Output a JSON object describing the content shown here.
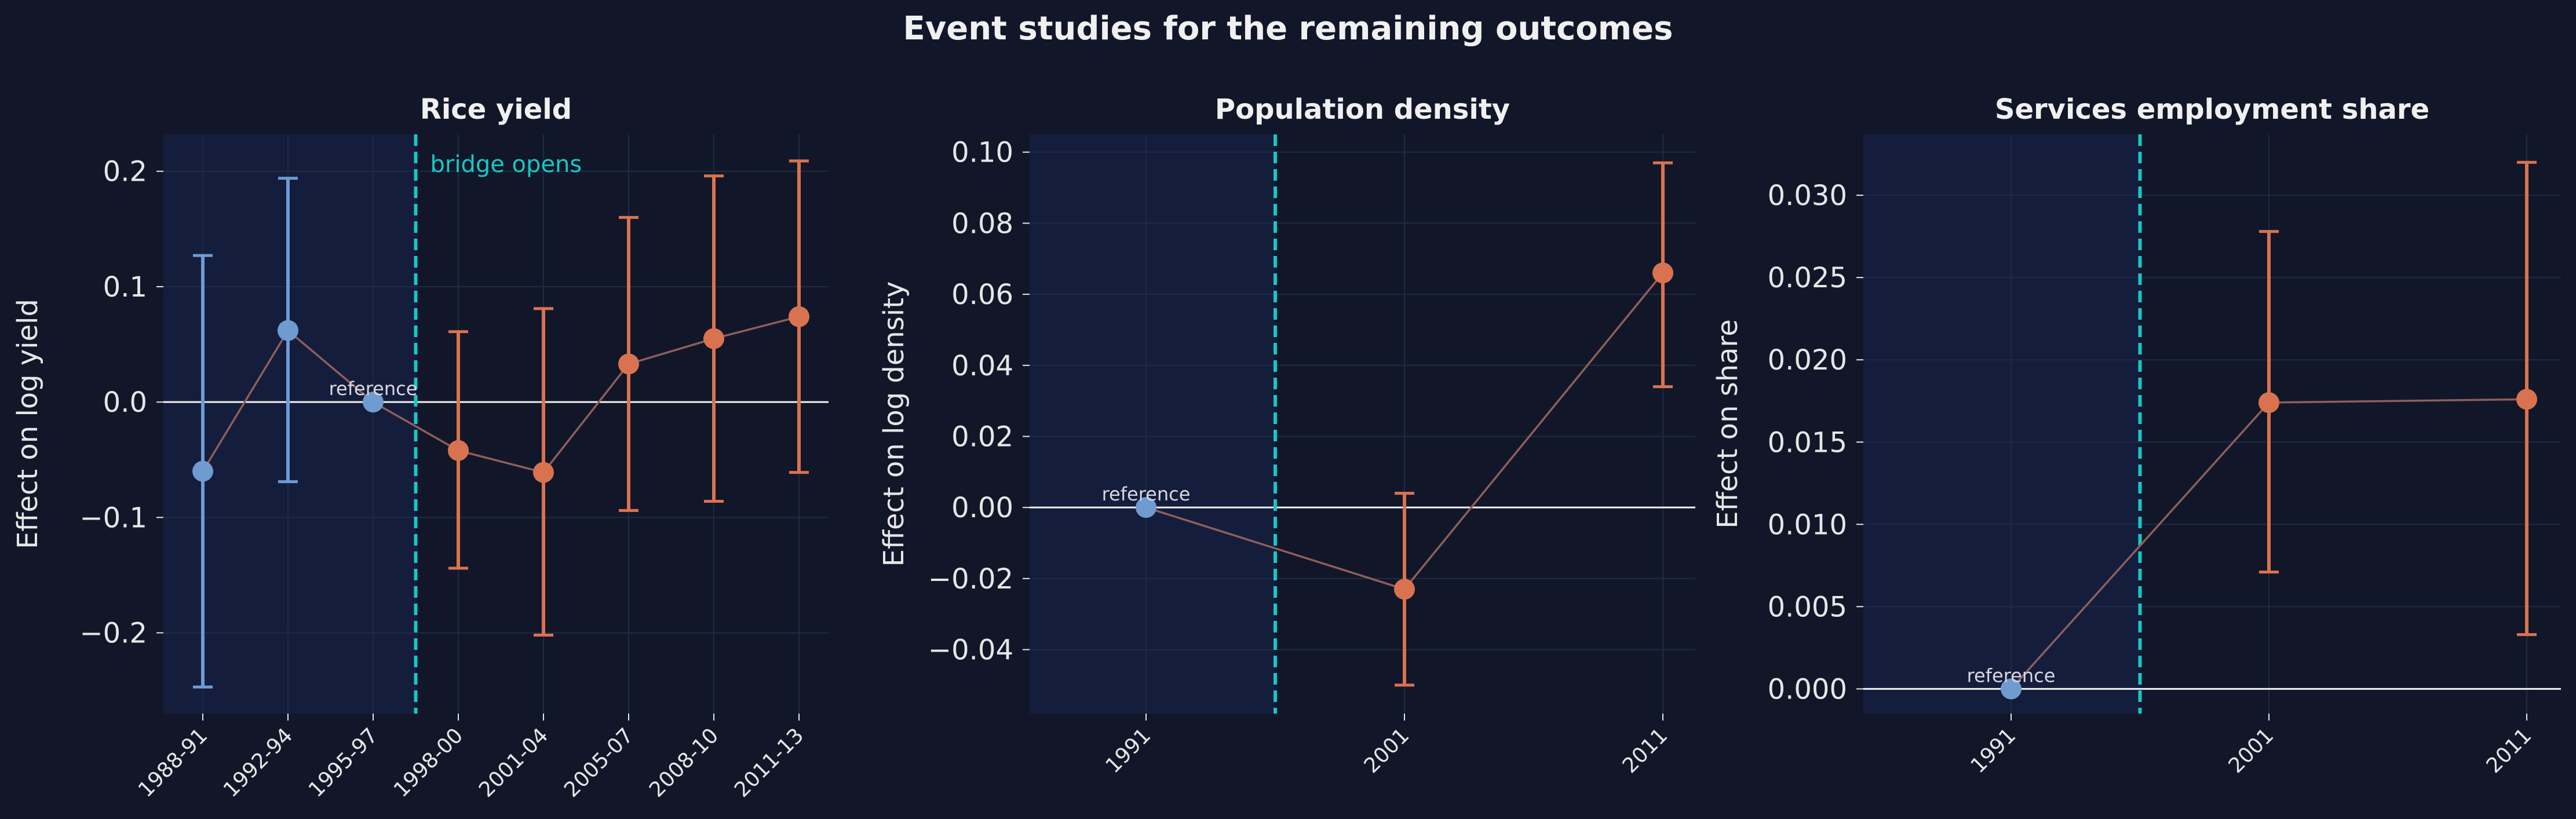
{
  "figure_title": "Event studies for the remaining outcomes",
  "colors": {
    "background": "#111729",
    "pre_shade": "#141d3b",
    "grid": "#1e2a47",
    "zero_line": "#f2f2f2",
    "event_line": "#19c6c4",
    "pre_point": "#6f9bd1",
    "post_point": "#d9734f",
    "connector": "#8f5e5a",
    "text": "#e6e6e6",
    "event_label": "#19c6c4"
  },
  "chart_data": [
    {
      "type": "scatter",
      "title": "Rice yield",
      "ylabel": "Effect on log yield",
      "xlabel": "",
      "categories": [
        "1988-91",
        "1992-94",
        "1995-97",
        "1998-00",
        "2001-04",
        "2005-07",
        "2008-10",
        "2011-13"
      ],
      "estimates": [
        -0.06,
        0.062,
        0.0,
        -0.042,
        -0.061,
        0.033,
        0.055,
        0.074
      ],
      "ci_low": [
        -0.247,
        -0.069,
        null,
        -0.144,
        -0.202,
        -0.094,
        -0.086,
        -0.061
      ],
      "ci_high": [
        0.127,
        0.194,
        null,
        0.061,
        0.081,
        0.16,
        0.196,
        0.209
      ],
      "period": [
        "pre",
        "pre",
        "pre",
        "post",
        "post",
        "post",
        "post",
        "post"
      ],
      "reference_index": 2,
      "reference_label": "reference",
      "event_after_index": 2,
      "event_label": "bridge opens",
      "ylim": [
        -0.27,
        0.232
      ],
      "yticks": [
        -0.2,
        -0.1,
        0.0,
        0.1,
        0.2
      ],
      "ytick_labels": [
        "−0.2",
        "−0.1",
        "0.0",
        "0.1",
        "0.2"
      ],
      "grid": true
    },
    {
      "type": "scatter",
      "title": "Population density",
      "ylabel": "Effect on log density",
      "xlabel": "",
      "categories": [
        "1991",
        "2001",
        "2011"
      ],
      "estimates": [
        0.0,
        -0.023,
        0.066
      ],
      "ci_low": [
        null,
        -0.05,
        0.034
      ],
      "ci_high": [
        null,
        0.004,
        0.097
      ],
      "period": [
        "pre",
        "post",
        "post"
      ],
      "reference_index": 0,
      "reference_label": "reference",
      "event_after_index": 0,
      "event_label": "",
      "ylim": [
        -0.058,
        0.105
      ],
      "yticks": [
        -0.04,
        -0.02,
        0.0,
        0.02,
        0.04,
        0.06,
        0.08,
        0.1
      ],
      "ytick_labels": [
        "−0.04",
        "−0.02",
        "0.00",
        "0.02",
        "0.04",
        "0.06",
        "0.08",
        "0.10"
      ],
      "grid": true
    },
    {
      "type": "scatter",
      "title": "Services employment share",
      "ylabel": "Effect on share",
      "xlabel": "",
      "categories": [
        "1991",
        "2001",
        "2011"
      ],
      "estimates": [
        0.0,
        0.0174,
        0.0176
      ],
      "ci_low": [
        null,
        0.0071,
        0.0033
      ],
      "ci_high": [
        null,
        0.0278,
        0.032
      ],
      "period": [
        "pre",
        "post",
        "post"
      ],
      "reference_index": 0,
      "reference_label": "reference",
      "event_after_index": 0,
      "event_label": "",
      "ylim": [
        -0.0015,
        0.0337
      ],
      "yticks": [
        0.0,
        0.005,
        0.01,
        0.015,
        0.02,
        0.025,
        0.03
      ],
      "ytick_labels": [
        "0.000",
        "0.005",
        "0.010",
        "0.015",
        "0.020",
        "0.025",
        "0.030"
      ],
      "grid": true
    }
  ]
}
